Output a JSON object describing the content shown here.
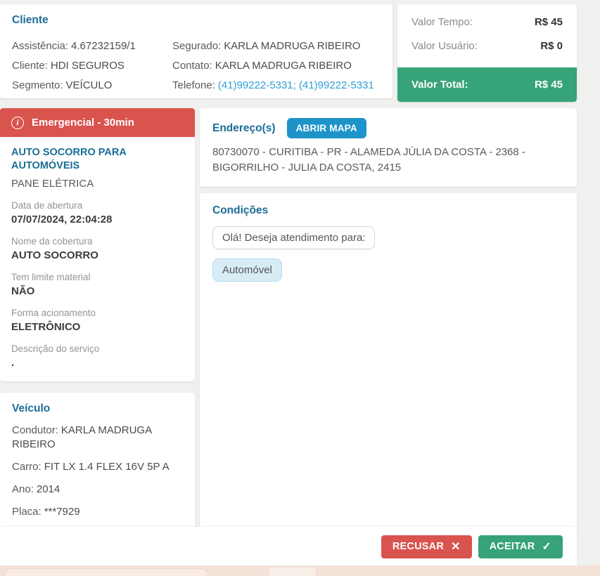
{
  "client_card": {
    "title": "Cliente",
    "col1": [
      {
        "label": "Assistência:",
        "value": "4.67232159/1"
      },
      {
        "label": "Cliente:",
        "value": "HDI SEGUROS"
      },
      {
        "label": "Segmento:",
        "value": "VEÍCULO"
      }
    ],
    "col2": [
      {
        "label": "Segurado:",
        "value": "KARLA MADRUGA RIBEIRO"
      },
      {
        "label": "Contato:",
        "value": "KARLA MADRUGA RIBEIRO"
      },
      {
        "label": "Telefone:",
        "value": "(41)99222-5331; (41)99222-5331"
      }
    ]
  },
  "values_card": {
    "rows": [
      {
        "label": "Valor Tempo:",
        "value": "R$ 45"
      },
      {
        "label": "Valor Usuário:",
        "value": "R$ 0"
      }
    ],
    "total": {
      "label": "Valor Total:",
      "value": "R$ 45"
    }
  },
  "service_card": {
    "banner": "Emergencial - 30min",
    "info_icon": "i",
    "service_name": "AUTO SOCORRO PARA AUTOMÓVEIS",
    "service_type": "PANE ELÉTRICA",
    "fields": [
      {
        "label": "Data de abertura",
        "value": "07/07/2024, 22:04:28"
      },
      {
        "label": "Nome da cobertura",
        "value": "AUTO SOCORRO"
      },
      {
        "label": "Tem limite material",
        "value": "NÃO"
      },
      {
        "label": "Forma acionamento",
        "value": "ELETRÔNICO"
      },
      {
        "label": "Descrição do serviço",
        "value": "."
      }
    ]
  },
  "vehicle_card": {
    "title": "Veículo",
    "rows": [
      {
        "label": "Condutor:",
        "value": "KARLA MADRUGA RIBEIRO"
      },
      {
        "label": "Carro:",
        "value": "FIT LX 1.4 FLEX 16V 5P A"
      },
      {
        "label": "Ano:",
        "value": "2014"
      },
      {
        "label": "Placa:",
        "value": "***7929"
      }
    ]
  },
  "address_card": {
    "title": "Endereço(s)",
    "map_button_label": "ABRIR MAPA",
    "address": "80730070 - CURITIBA - PR - ALAMEDA JÚLIA DA COSTA - 2368 - BIGORRILHO - JULIA DA COSTA, 2415"
  },
  "conditions_card": {
    "title": "Condições",
    "messages": [
      "Olá! Deseja atendimento para:",
      "Automóvel"
    ]
  },
  "footer": {
    "reject_label": "RECUSAR",
    "reject_icon": "✕",
    "accept_label": "ACEITAR",
    "accept_icon": "✓"
  },
  "colors": {
    "heading_blue": "#1b6d96",
    "link_blue": "#2d9fd4",
    "danger_red": "#d9534f",
    "success_green": "#36a378",
    "map_button_blue": "#1e93c9",
    "selected_chip_bg": "#d8ecf6",
    "background_gray": "#f0f0ee",
    "bottom_strip_peach": "#f4e2d9"
  }
}
